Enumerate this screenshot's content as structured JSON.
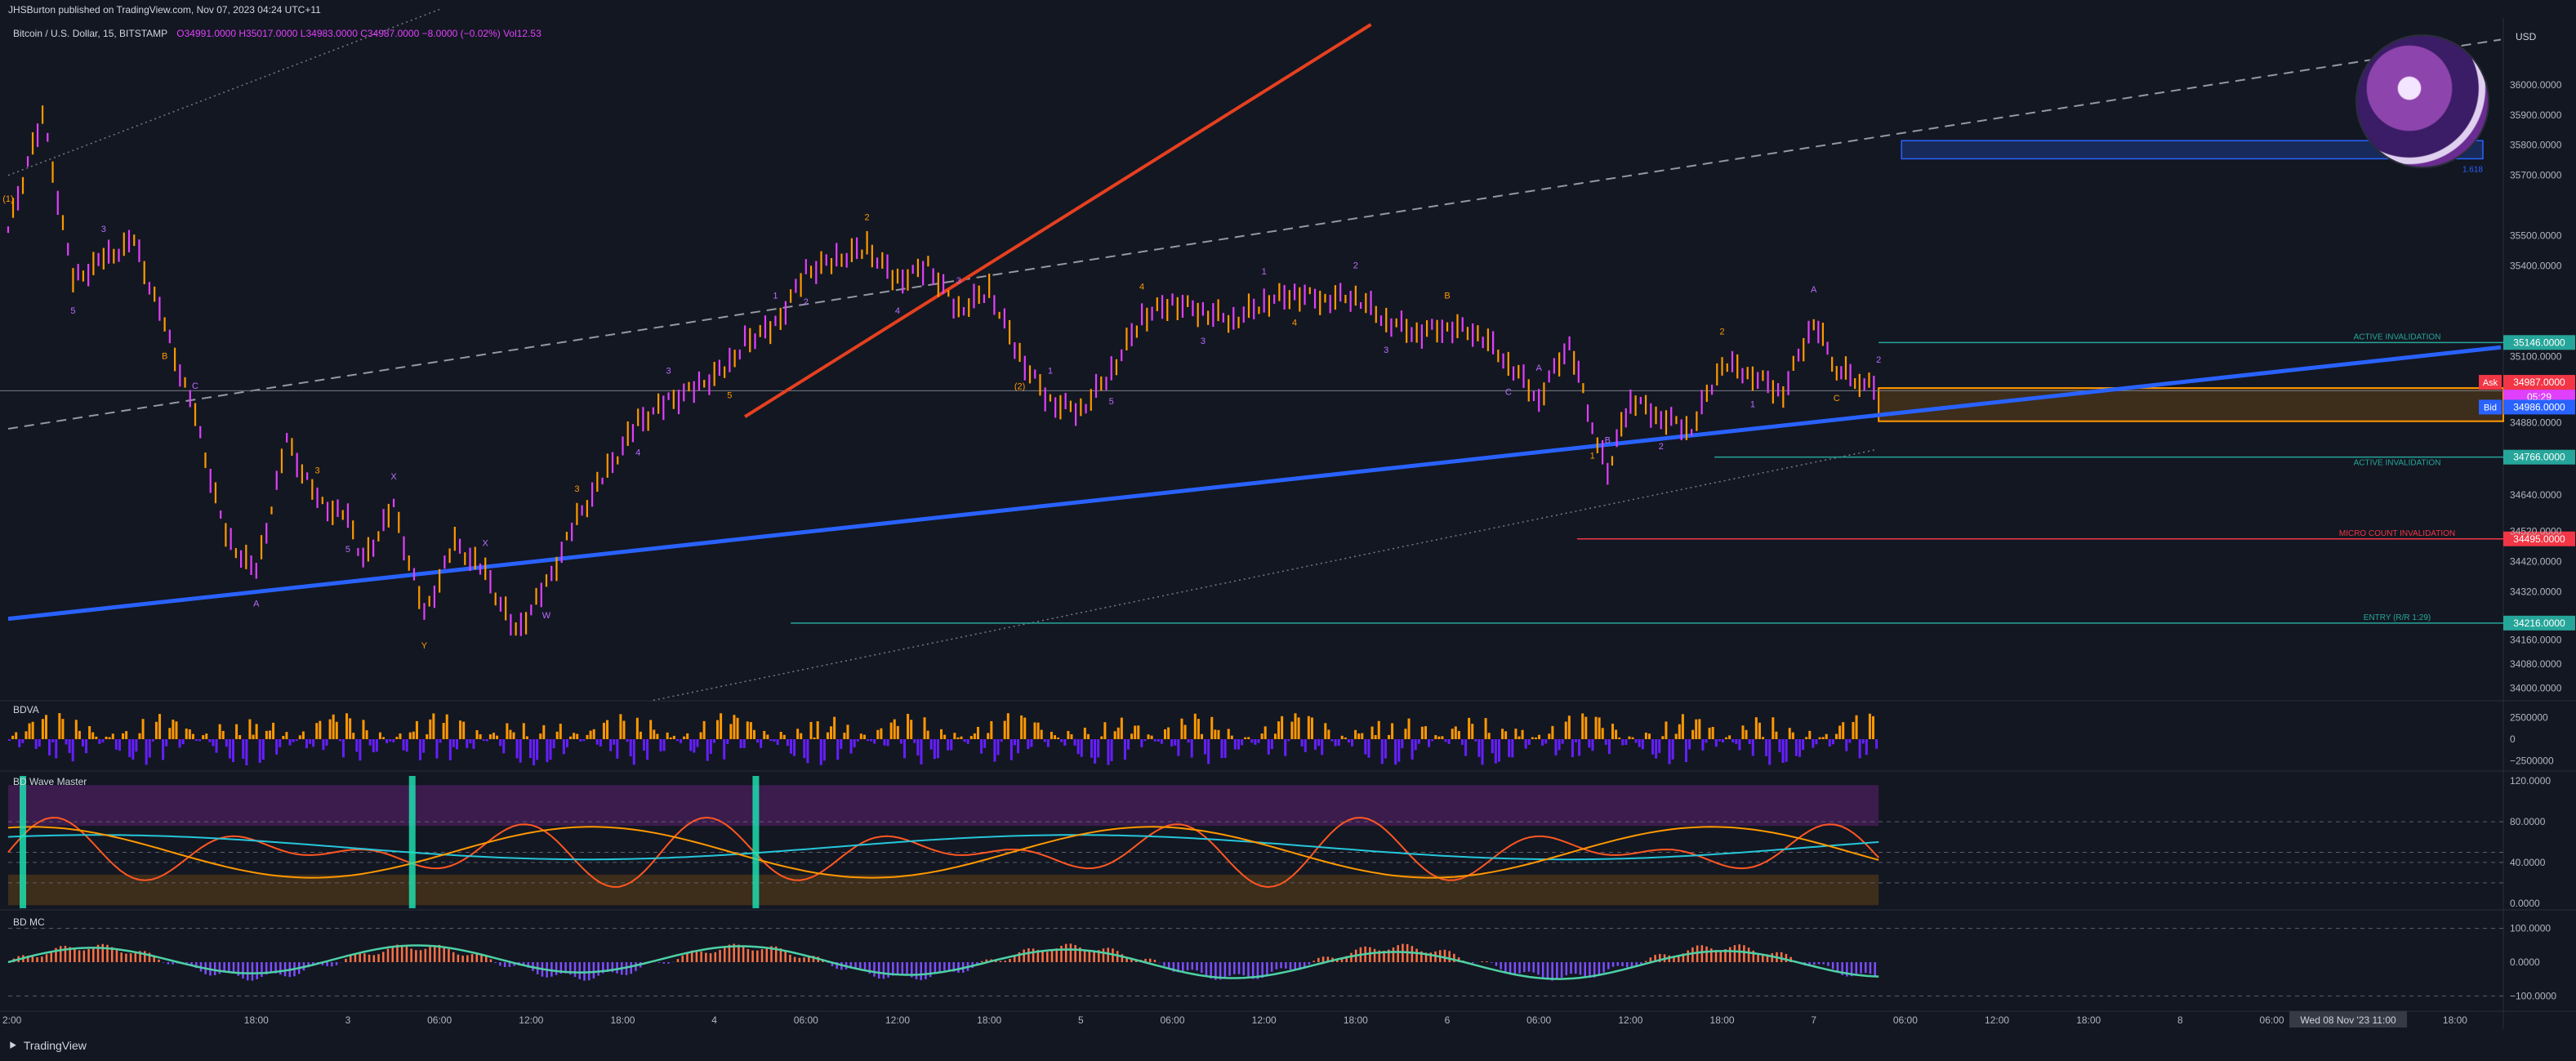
{
  "topbar": {
    "publisher": "JHSBurton published on TradingView.com, Nov 07, 2023 04:24 UTC+11",
    "currency": "USD"
  },
  "legend": {
    "symbol": "Bitcoin / U.S. Dollar, 15, BITSTAMP",
    "open": "O34991.0000",
    "high": "H35017.0000",
    "low": "L34983.0000",
    "close": "C34987.0000",
    "change": "−8.0000 (−0.02%)",
    "vol": "Vol12.53"
  },
  "footer": {
    "brand": "TradingView",
    "logo": "tradingview-logo-icon"
  },
  "avatar": {
    "icon": "purple-surfer-avatar-icon"
  },
  "chart_data": [
    {
      "type": "line",
      "pane": "price",
      "title": "Bitcoin / U.S. Dollar, 15, BITSTAMP",
      "ylim": [
        33980,
        36200
      ],
      "y_ticks": [
        "36000.0000",
        "35900.0000",
        "35800.0000",
        "35700.0000",
        "35500.0000",
        "35400.0000",
        "35100.0000",
        "34880.0000",
        "34640.0000",
        "34520.0000",
        "34420.0000",
        "34320.0000",
        "34160.0000",
        "34080.0000",
        "34000.0000"
      ],
      "x_ticks": [
        "2:00",
        "18:00",
        "3",
        "06:00",
        "12:00",
        "18:00",
        "4",
        "06:00",
        "12:00",
        "18:00",
        "5",
        "06:00",
        "12:00",
        "18:00",
        "6",
        "06:00",
        "12:00",
        "18:00",
        "7",
        "06:00",
        "12:00",
        "18:00",
        "8",
        "06:00",
        "Wed 08 Nov '23 11:00",
        "18:00"
      ],
      "x_ticks_values": [
        "2023-11-02T02:00",
        "2023-11-02T18:00",
        "2023-11-03T00:00",
        "2023-11-03T06:00",
        "2023-11-03T12:00",
        "2023-11-03T18:00",
        "2023-11-04T00:00",
        "2023-11-04T06:00",
        "2023-11-04T12:00",
        "2023-11-04T18:00",
        "2023-11-05T00:00",
        "2023-11-05T06:00",
        "2023-11-05T12:00",
        "2023-11-05T18:00",
        "2023-11-06T00:00",
        "2023-11-06T06:00",
        "2023-11-06T12:00",
        "2023-11-06T18:00",
        "2023-11-07T00:00",
        "2023-11-07T06:00",
        "2023-11-07T12:00",
        "2023-11-07T18:00",
        "2023-11-08T00:00",
        "2023-11-08T06:00",
        "2023-11-08T11:00",
        "2023-11-08T18:00"
      ],
      "x_range": [
        "2023-11-02T01:45",
        "2023-11-08T21:00"
      ],
      "series": [
        {
          "name": "",
          "color": "#ff9800",
          "alt_color": "#e040fb",
          "x": [
            "2023-11-02T01:45",
            "2023-11-02T04:00",
            "2023-11-02T06:00",
            "2023-11-02T08:00",
            "2023-11-02T10:00",
            "2023-11-02T12:00",
            "2023-11-02T14:00",
            "2023-11-02T16:00",
            "2023-11-02T18:00",
            "2023-11-02T20:00",
            "2023-11-02T22:00",
            "2023-11-03T00:00",
            "2023-11-03T01:00",
            "2023-11-03T03:00",
            "2023-11-03T05:00",
            "2023-11-03T07:00",
            "2023-11-03T09:00",
            "2023-11-03T11:00",
            "2023-11-03T13:00",
            "2023-11-03T15:00",
            "2023-11-03T17:00",
            "2023-11-03T19:00",
            "2023-11-03T21:00",
            "2023-11-03T23:00",
            "2023-11-04T01:00",
            "2023-11-04T02:00",
            "2023-11-04T04:00",
            "2023-11-04T06:00",
            "2023-11-04T08:00",
            "2023-11-04T10:00",
            "2023-11-04T12:00",
            "2023-11-04T14:00",
            "2023-11-04T16:00",
            "2023-11-04T18:00",
            "2023-11-04T20:00",
            "2023-11-04T22:00",
            "2023-11-05T00:00",
            "2023-11-05T02:00",
            "2023-11-05T04:00",
            "2023-11-05T06:00",
            "2023-11-05T08:00",
            "2023-11-05T10:00",
            "2023-11-05T12:00",
            "2023-11-05T14:00",
            "2023-11-05T16:00",
            "2023-11-05T18:00",
            "2023-11-05T20:00",
            "2023-11-05T22:00",
            "2023-11-06T00:00",
            "2023-11-06T02:00",
            "2023-11-06T04:00",
            "2023-11-06T06:00",
            "2023-11-06T08:00",
            "2023-11-06T09:30",
            "2023-11-06T10:30",
            "2023-11-06T12:00",
            "2023-11-06T14:00",
            "2023-11-06T16:00",
            "2023-11-06T18:00",
            "2023-11-06T20:00",
            "2023-11-06T22:00",
            "2023-11-07T00:00",
            "2023-11-07T01:30",
            "2023-11-07T03:00",
            "2023-11-07T04:15"
          ],
          "values": [
            35520,
            35900,
            35350,
            35420,
            35480,
            35200,
            34900,
            34500,
            34380,
            34820,
            34620,
            34560,
            34420,
            34600,
            34240,
            34480,
            34380,
            34180,
            34340,
            34560,
            34720,
            34880,
            34950,
            35000,
            35070,
            35150,
            35200,
            35380,
            35420,
            35460,
            35350,
            35400,
            35250,
            35320,
            35100,
            34950,
            34920,
            35050,
            35230,
            35280,
            35250,
            35220,
            35280,
            35310,
            35290,
            35300,
            35220,
            35180,
            35200,
            35180,
            35080,
            34960,
            35150,
            34870,
            34720,
            34960,
            34900,
            34860,
            35080,
            35040,
            34980,
            35220,
            35060,
            35020,
            34987
          ]
        }
      ],
      "levels": [
        {
          "label": "ACTIVE INVALIDATION",
          "value": 35146,
          "axis_label": "35146.0000",
          "color": "#26a69a"
        },
        {
          "label": "Ask",
          "value": 34987,
          "axis_label": "34987.0000",
          "color": "#f23645"
        },
        {
          "label": "05:29",
          "axis_label": "05:29",
          "color": "#e040fb"
        },
        {
          "label": "Bid",
          "value": 34986,
          "axis_label": "34986.0000",
          "color": "#2962ff"
        },
        {
          "label": "ACTIVE INVALIDATION",
          "value": 34766,
          "axis_label": "34766.0000",
          "color": "#26a69a"
        },
        {
          "label": "MICRO COUNT INVALIDATION",
          "value": 34495,
          "axis_label": "34495.0000",
          "color": "#f23645"
        },
        {
          "label": "ENTRY (R/R 1:29)",
          "value": 34216,
          "axis_label": "34216.0000",
          "color": "#26a69a"
        }
      ],
      "target_box": {
        "from": 35755,
        "to": 35815,
        "color": "#2962ff",
        "label": "1.618"
      },
      "wave_labels": [
        "(1)",
        "5",
        "3",
        "B",
        "C",
        "A",
        "3",
        "5",
        "X",
        "Y",
        "X",
        "W",
        "3",
        "4",
        "3",
        "5",
        "1",
        "2",
        "2",
        "4",
        "3",
        "(2)",
        "1",
        "5",
        "4",
        "3",
        "1",
        "4",
        "2",
        "3",
        "B",
        "C",
        "A",
        "1",
        "B",
        "2",
        "2",
        "1",
        "A",
        "C",
        "2"
      ],
      "x_ylabel": ""
    },
    {
      "type": "bar",
      "pane": "BDVA",
      "title": "BDVA",
      "y_ticks": [
        "2500000",
        "0",
        "−2500000"
      ],
      "ylim": [
        -3000000,
        3000000
      ],
      "series": [
        {
          "name": "",
          "color": "#ff9800"
        },
        {
          "name": "",
          "color": "#651fff"
        }
      ]
    },
    {
      "type": "line",
      "pane": "BD Wave Master",
      "title": "BD Wave Master",
      "y_ticks": [
        "120.0000",
        "80.0000",
        "40.0000",
        "0.0000"
      ],
      "ylim": [
        -5,
        125
      ],
      "series": [
        {
          "name": "",
          "color": "#ff5722"
        },
        {
          "name": "",
          "color": "#26c6da"
        },
        {
          "name": "",
          "color": "#ff9800"
        }
      ]
    },
    {
      "type": "line",
      "pane": "BD MC",
      "title": "BD MC",
      "y_ticks": [
        "100.0000",
        "0.0000",
        "−100.0000"
      ],
      "ylim": [
        -140,
        140
      ],
      "series": [
        {
          "name": "",
          "color": "#4dd0a5"
        }
      ]
    }
  ]
}
